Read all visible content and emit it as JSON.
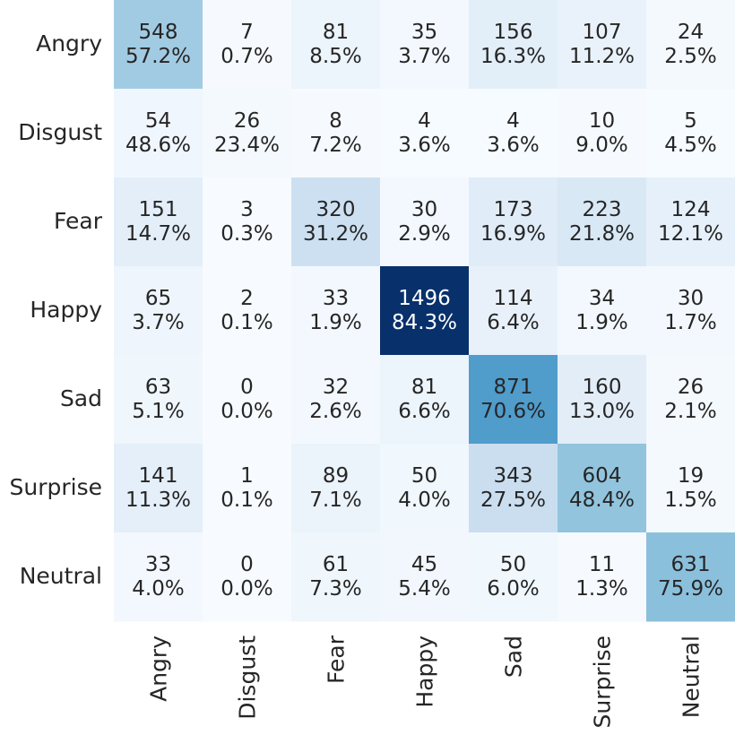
{
  "chart_data": {
    "type": "heatmap",
    "title": "",
    "xlabel": "",
    "ylabel": "",
    "colormap": "Blues",
    "x_categories": [
      "Angry",
      "Disgust",
      "Fear",
      "Happy",
      "Sad",
      "Surprise",
      "Neutral"
    ],
    "y_categories": [
      "Angry",
      "Disgust",
      "Fear",
      "Happy",
      "Sad",
      "Surprise",
      "Neutral"
    ],
    "counts": [
      [
        548,
        7,
        81,
        35,
        156,
        107,
        24
      ],
      [
        54,
        26,
        8,
        4,
        4,
        10,
        5
      ],
      [
        151,
        3,
        320,
        30,
        173,
        223,
        124
      ],
      [
        65,
        2,
        33,
        1496,
        114,
        34,
        30
      ],
      [
        63,
        0,
        32,
        81,
        871,
        160,
        26
      ],
      [
        141,
        1,
        89,
        50,
        343,
        604,
        19
      ],
      [
        33,
        0,
        61,
        45,
        50,
        11,
        631
      ]
    ],
    "percentages": [
      [
        "57.2%",
        "0.7%",
        "8.5%",
        "3.7%",
        "16.3%",
        "11.2%",
        "2.5%"
      ],
      [
        "48.6%",
        "23.4%",
        "7.2%",
        "3.6%",
        "3.6%",
        "9.0%",
        "4.5%"
      ],
      [
        "14.7%",
        "0.3%",
        "31.2%",
        "2.9%",
        "16.9%",
        "21.8%",
        "12.1%"
      ],
      [
        "3.7%",
        "0.1%",
        "1.9%",
        "84.3%",
        "6.4%",
        "1.9%",
        "1.7%"
      ],
      [
        "5.1%",
        "0.0%",
        "2.6%",
        "6.6%",
        "70.6%",
        "13.0%",
        "2.1%"
      ],
      [
        "11.3%",
        "0.1%",
        "7.1%",
        "4.0%",
        "27.5%",
        "48.4%",
        "1.5%"
      ],
      [
        "4.0%",
        "0.0%",
        "7.3%",
        "5.4%",
        "6.0%",
        "1.3%",
        "75.9%"
      ]
    ],
    "grid": false,
    "colorbar": false
  }
}
